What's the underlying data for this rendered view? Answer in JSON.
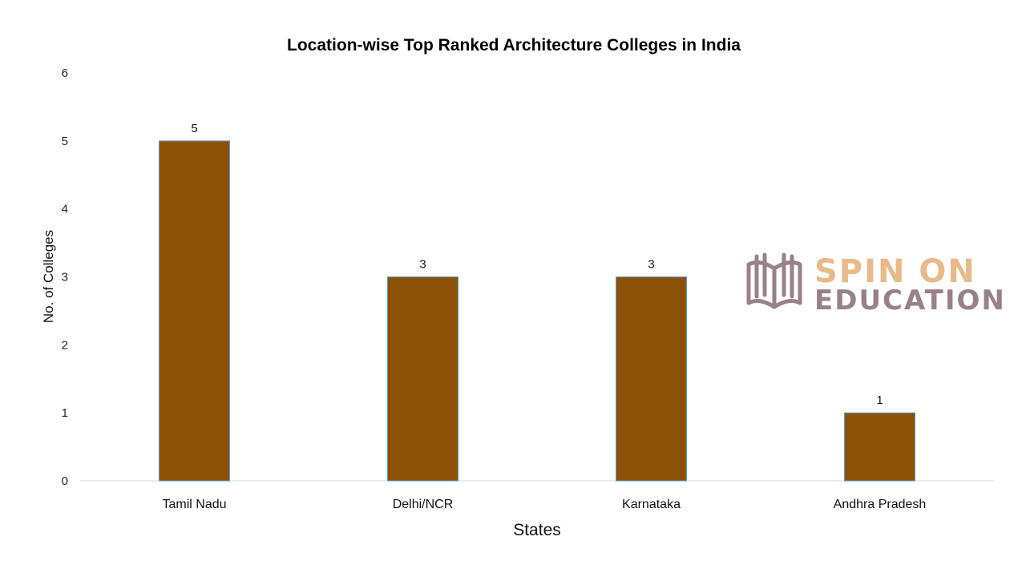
{
  "chart_data": {
    "type": "bar",
    "title": "Location-wise Top Ranked  Architecture Colleges in India",
    "xlabel": "States",
    "ylabel": "No. of Colleges",
    "categories": [
      "Tamil Nadu",
      "Delhi/NCR",
      "Karnataka",
      "Andhra Pradesh"
    ],
    "values": [
      5,
      3,
      3,
      1
    ],
    "data_labels": [
      "5",
      "3",
      "3",
      "1"
    ],
    "ylim": [
      0,
      6
    ],
    "yticks": [
      "0",
      "1",
      "2",
      "3",
      "4",
      "5",
      "6"
    ],
    "grid": false,
    "legend": "none",
    "bar_color": "#8B5206",
    "bar_edge_color": "#5b9bd5"
  },
  "watermark": {
    "line1": "SPIN ON",
    "line2": "EDUCATION",
    "line1_color": "#e8b98a",
    "line2_color": "#9a8088",
    "icon": "open-book-icon"
  }
}
